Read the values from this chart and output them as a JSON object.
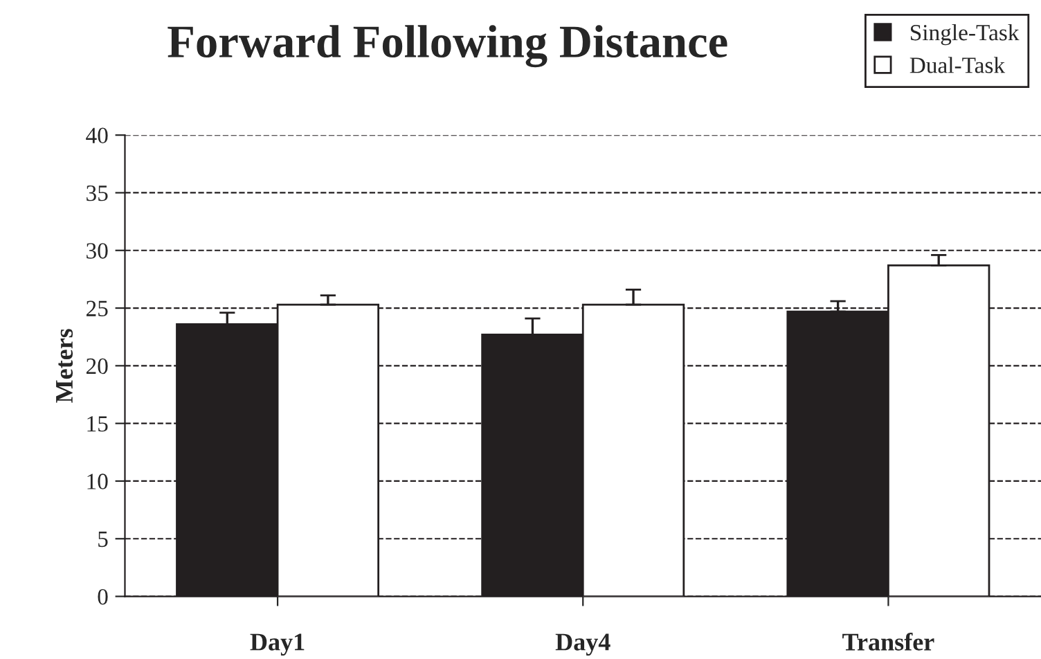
{
  "chart_data": {
    "type": "bar",
    "title": "Forward Following Distance",
    "ylabel": "Meters",
    "categories": [
      "Day1",
      "Day4",
      "Transfer"
    ],
    "series": [
      {
        "name": "Single-Task",
        "color": "#231f20",
        "values": [
          23.6,
          22.7,
          24.7
        ],
        "errors": [
          [
            23.6,
            24.6
          ],
          [
            22.7,
            24.1
          ],
          [
            24.7,
            25.6
          ]
        ]
      },
      {
        "name": "Dual-Task",
        "color": "#ffffff",
        "values": [
          25.3,
          25.3,
          28.7
        ],
        "errors": [
          [
            25.3,
            26.1
          ],
          [
            25.3,
            26.6
          ],
          [
            28.7,
            29.6
          ]
        ]
      }
    ],
    "ylim": [
      0,
      40
    ],
    "yticks": [
      0,
      5,
      10,
      15,
      20,
      25,
      30,
      35,
      40
    ],
    "grid": "y",
    "legend": "top right"
  }
}
